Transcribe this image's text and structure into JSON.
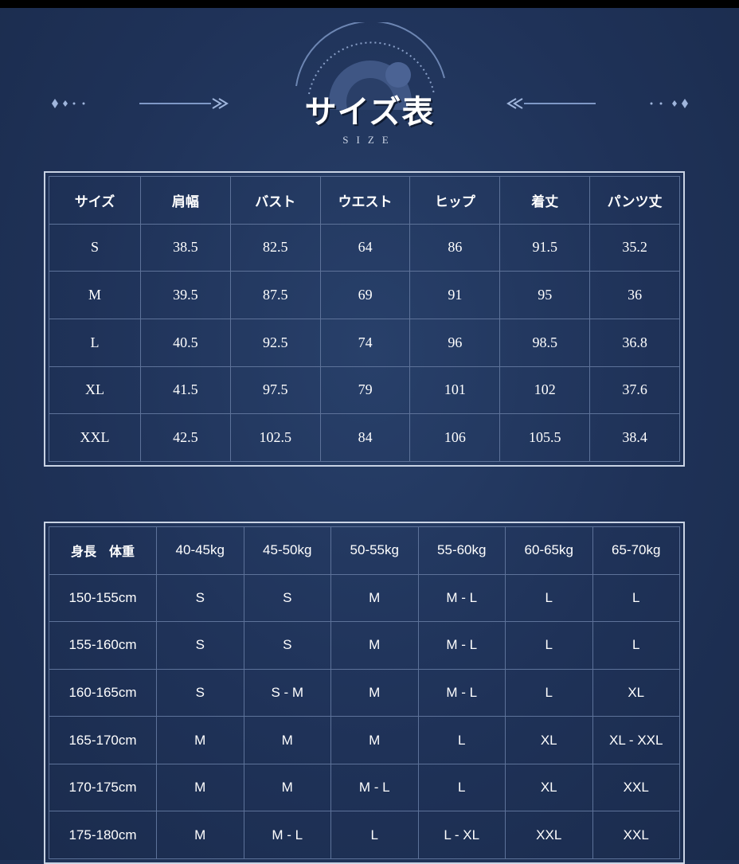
{
  "header": {
    "title": "サイズ表",
    "subtitle": "SIZE"
  },
  "size_table": {
    "columns": [
      "サイズ",
      "肩幅",
      "バスト",
      "ウエスト",
      "ヒップ",
      "着丈",
      "パンツ丈"
    ],
    "rows": [
      [
        "S",
        "38.5",
        "82.5",
        "64",
        "86",
        "91.5",
        "35.2"
      ],
      [
        "M",
        "39.5",
        "87.5",
        "69",
        "91",
        "95",
        "36"
      ],
      [
        "L",
        "40.5",
        "92.5",
        "74",
        "96",
        "98.5",
        "36.8"
      ],
      [
        "XL",
        "41.5",
        "97.5",
        "79",
        "101",
        "102",
        "37.6"
      ],
      [
        "XXL",
        "42.5",
        "102.5",
        "84",
        "106",
        "105.5",
        "38.4"
      ]
    ]
  },
  "fit_table": {
    "columns": [
      "身長　体重",
      "40-45kg",
      "45-50kg",
      "50-55kg",
      "55-60kg",
      "60-65kg",
      "65-70kg"
    ],
    "rows": [
      [
        "150-155cm",
        "S",
        "S",
        "M",
        "M - L",
        "L",
        "L"
      ],
      [
        "155-160cm",
        "S",
        "S",
        "M",
        "M - L",
        "L",
        "L"
      ],
      [
        "160-165cm",
        "S",
        "S - M",
        "M",
        "M - L",
        "L",
        "XL"
      ],
      [
        "165-170cm",
        "M",
        "M",
        "M",
        "L",
        "XL",
        "XL - XXL"
      ],
      [
        "170-175cm",
        "M",
        "M",
        "M - L",
        "L",
        "XL",
        "XXL"
      ],
      [
        "175-180cm",
        "M",
        "M - L",
        "L",
        "L - XL",
        "XXL",
        "XXL"
      ]
    ]
  }
}
